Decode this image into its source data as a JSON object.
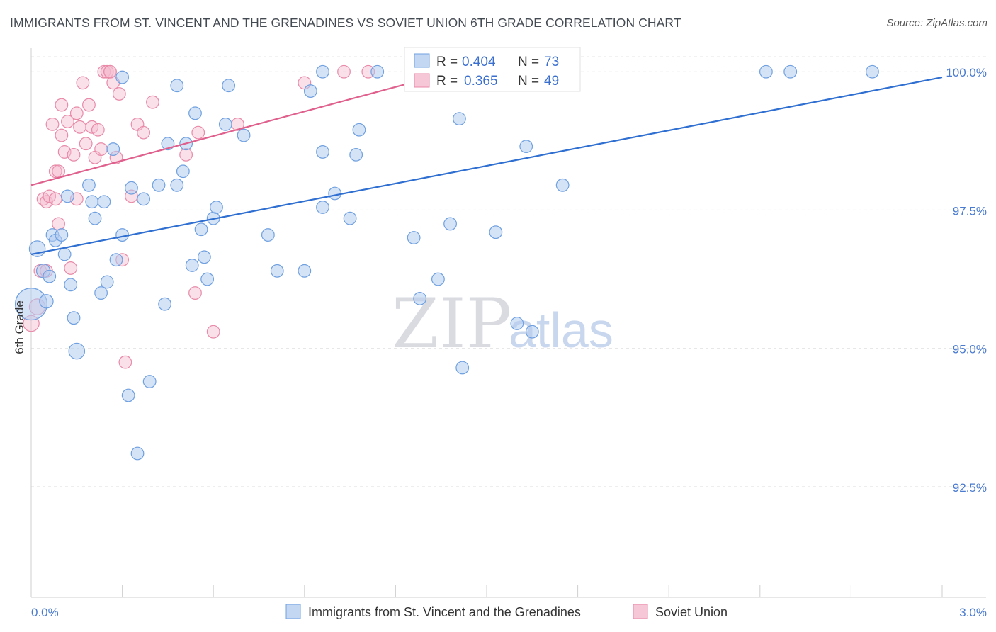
{
  "title": "IMMIGRANTS FROM ST. VINCENT AND THE GRENADINES VS SOVIET UNION 6TH GRADE CORRELATION CHART",
  "source": "Source: ZipAtlas.com",
  "watermark": {
    "zip": "ZIP",
    "atlas": "atlas"
  },
  "colors": {
    "blue": "#6fa0e0",
    "blue_fill": "#c3d7f3",
    "blue_line": "#2f6fd1",
    "pink": "#e88aa8",
    "pink_fill": "#f6c7d6",
    "pink_line": "#e0608d"
  },
  "legend": {
    "rows": [
      {
        "r_label": "R =",
        "r_value": "0.404",
        "n_label": "N =",
        "n_value": "73"
      },
      {
        "r_label": "R =",
        "r_value": "0.365",
        "n_label": "N =",
        "n_value": "49"
      }
    ]
  },
  "chart_data": {
    "type": "scatter",
    "title": "IMMIGRANTS FROM ST. VINCENT AND THE GRENADINES VS SOVIET UNION 6TH GRADE CORRELATION CHART",
    "xlabel": "",
    "ylabel": "6th Grade",
    "xlim": [
      0.0,
      3.0
    ],
    "ylim": [
      90.5,
      100.4
    ],
    "x_tick_labels": [
      "0.0%",
      "3.0%"
    ],
    "y_ticks": [
      92.5,
      95.0,
      97.5,
      100.0
    ],
    "y_tick_labels": [
      "92.5%",
      "95.0%",
      "97.5%",
      "100.0%"
    ],
    "grid": true,
    "legend_position": "top-center",
    "series": [
      {
        "name": "Immigrants from St. Vincent and the Grenadines",
        "color": "#6fa0e0",
        "trend": {
          "x": [
            0.0,
            3.0
          ],
          "y": [
            96.7,
            99.9
          ]
        },
        "points": [
          {
            "x": 0.0,
            "y": 95.8,
            "s": 28
          },
          {
            "x": 0.02,
            "y": 96.8,
            "s": 14
          },
          {
            "x": 0.04,
            "y": 96.4,
            "s": 12
          },
          {
            "x": 0.05,
            "y": 95.85,
            "s": 12
          },
          {
            "x": 0.06,
            "y": 96.3,
            "s": 11
          },
          {
            "x": 0.07,
            "y": 97.05,
            "s": 11
          },
          {
            "x": 0.08,
            "y": 96.95,
            "s": 11
          },
          {
            "x": 0.1,
            "y": 97.05,
            "s": 11
          },
          {
            "x": 0.11,
            "y": 96.7,
            "s": 11
          },
          {
            "x": 0.12,
            "y": 97.75,
            "s": 11
          },
          {
            "x": 0.13,
            "y": 96.15,
            "s": 11
          },
          {
            "x": 0.14,
            "y": 95.55,
            "s": 11
          },
          {
            "x": 0.15,
            "y": 94.95,
            "s": 14
          },
          {
            "x": 0.19,
            "y": 97.95,
            "s": 11
          },
          {
            "x": 0.2,
            "y": 97.65,
            "s": 11
          },
          {
            "x": 0.21,
            "y": 97.35,
            "s": 11
          },
          {
            "x": 0.23,
            "y": 96.0,
            "s": 11
          },
          {
            "x": 0.24,
            "y": 97.65,
            "s": 11
          },
          {
            "x": 0.25,
            "y": 96.2,
            "s": 11
          },
          {
            "x": 0.27,
            "y": 98.6,
            "s": 11
          },
          {
            "x": 0.28,
            "y": 96.6,
            "s": 11
          },
          {
            "x": 0.3,
            "y": 97.05,
            "s": 11
          },
          {
            "x": 0.3,
            "y": 99.9,
            "s": 11
          },
          {
            "x": 0.32,
            "y": 94.15,
            "s": 11
          },
          {
            "x": 0.33,
            "y": 97.9,
            "s": 11
          },
          {
            "x": 0.35,
            "y": 93.1,
            "s": 11
          },
          {
            "x": 0.37,
            "y": 97.7,
            "s": 11
          },
          {
            "x": 0.39,
            "y": 94.4,
            "s": 11
          },
          {
            "x": 0.42,
            "y": 97.95,
            "s": 11
          },
          {
            "x": 0.44,
            "y": 95.8,
            "s": 11
          },
          {
            "x": 0.45,
            "y": 98.7,
            "s": 11
          },
          {
            "x": 0.48,
            "y": 99.75,
            "s": 11
          },
          {
            "x": 0.48,
            "y": 97.95,
            "s": 11
          },
          {
            "x": 0.5,
            "y": 98.2,
            "s": 11
          },
          {
            "x": 0.51,
            "y": 98.7,
            "s": 11
          },
          {
            "x": 0.53,
            "y": 96.5,
            "s": 11
          },
          {
            "x": 0.54,
            "y": 99.25,
            "s": 11
          },
          {
            "x": 0.56,
            "y": 97.15,
            "s": 11
          },
          {
            "x": 0.57,
            "y": 96.65,
            "s": 11
          },
          {
            "x": 0.58,
            "y": 96.25,
            "s": 11
          },
          {
            "x": 0.6,
            "y": 97.35,
            "s": 11
          },
          {
            "x": 0.61,
            "y": 97.55,
            "s": 11
          },
          {
            "x": 0.64,
            "y": 99.05,
            "s": 11
          },
          {
            "x": 0.65,
            "y": 99.75,
            "s": 11
          },
          {
            "x": 0.7,
            "y": 98.85,
            "s": 11
          },
          {
            "x": 0.78,
            "y": 97.05,
            "s": 11
          },
          {
            "x": 0.81,
            "y": 96.4,
            "s": 11
          },
          {
            "x": 0.9,
            "y": 96.4,
            "s": 11
          },
          {
            "x": 0.92,
            "y": 99.65,
            "s": 11
          },
          {
            "x": 0.96,
            "y": 97.55,
            "s": 11
          },
          {
            "x": 0.96,
            "y": 100.0,
            "s": 11
          },
          {
            "x": 0.96,
            "y": 98.55,
            "s": 11
          },
          {
            "x": 1.0,
            "y": 97.8,
            "s": 11
          },
          {
            "x": 1.05,
            "y": 97.35,
            "s": 11
          },
          {
            "x": 1.07,
            "y": 98.5,
            "s": 11
          },
          {
            "x": 1.08,
            "y": 98.95,
            "s": 11
          },
          {
            "x": 1.14,
            "y": 100.0,
            "s": 11
          },
          {
            "x": 1.26,
            "y": 97.0,
            "s": 11
          },
          {
            "x": 1.28,
            "y": 95.9,
            "s": 11
          },
          {
            "x": 1.34,
            "y": 96.25,
            "s": 11
          },
          {
            "x": 1.38,
            "y": 97.25,
            "s": 11
          },
          {
            "x": 1.41,
            "y": 99.15,
            "s": 11
          },
          {
            "x": 1.42,
            "y": 94.65,
            "s": 11
          },
          {
            "x": 1.5,
            "y": 100.0,
            "s": 11
          },
          {
            "x": 1.53,
            "y": 97.1,
            "s": 11
          },
          {
            "x": 1.6,
            "y": 95.45,
            "s": 11
          },
          {
            "x": 1.63,
            "y": 98.65,
            "s": 11
          },
          {
            "x": 1.65,
            "y": 95.3,
            "s": 11
          },
          {
            "x": 1.7,
            "y": 100.0,
            "s": 11
          },
          {
            "x": 1.75,
            "y": 97.95,
            "s": 11
          },
          {
            "x": 2.42,
            "y": 100.0,
            "s": 11
          },
          {
            "x": 2.5,
            "y": 100.0,
            "s": 11
          },
          {
            "x": 2.77,
            "y": 100.0,
            "s": 11
          }
        ]
      },
      {
        "name": "Soviet Union",
        "color": "#e88aa8",
        "trend": {
          "x": [
            0.0,
            1.42
          ],
          "y": [
            97.95,
            100.05
          ]
        },
        "points": [
          {
            "x": 0.0,
            "y": 95.45,
            "s": 14
          },
          {
            "x": 0.02,
            "y": 95.75,
            "s": 14
          },
          {
            "x": 0.03,
            "y": 96.4,
            "s": 11
          },
          {
            "x": 0.04,
            "y": 97.7,
            "s": 11
          },
          {
            "x": 0.05,
            "y": 97.65,
            "s": 11
          },
          {
            "x": 0.06,
            "y": 97.75,
            "s": 11
          },
          {
            "x": 0.07,
            "y": 99.05,
            "s": 11
          },
          {
            "x": 0.08,
            "y": 98.2,
            "s": 11
          },
          {
            "x": 0.09,
            "y": 97.25,
            "s": 11
          },
          {
            "x": 0.09,
            "y": 98.2,
            "s": 11
          },
          {
            "x": 0.1,
            "y": 99.4,
            "s": 11
          },
          {
            "x": 0.1,
            "y": 98.85,
            "s": 11
          },
          {
            "x": 0.11,
            "y": 98.55,
            "s": 11
          },
          {
            "x": 0.12,
            "y": 99.1,
            "s": 11
          },
          {
            "x": 0.13,
            "y": 96.45,
            "s": 11
          },
          {
            "x": 0.14,
            "y": 98.5,
            "s": 11
          },
          {
            "x": 0.15,
            "y": 99.25,
            "s": 11
          },
          {
            "x": 0.16,
            "y": 99.0,
            "s": 11
          },
          {
            "x": 0.17,
            "y": 99.8,
            "s": 11
          },
          {
            "x": 0.18,
            "y": 98.7,
            "s": 11
          },
          {
            "x": 0.19,
            "y": 99.4,
            "s": 11
          },
          {
            "x": 0.2,
            "y": 99.0,
            "s": 11
          },
          {
            "x": 0.21,
            "y": 98.45,
            "s": 11
          },
          {
            "x": 0.22,
            "y": 98.95,
            "s": 11
          },
          {
            "x": 0.23,
            "y": 98.6,
            "s": 11
          },
          {
            "x": 0.24,
            "y": 100.0,
            "s": 11
          },
          {
            "x": 0.25,
            "y": 100.0,
            "s": 11
          },
          {
            "x": 0.26,
            "y": 100.0,
            "s": 11
          },
          {
            "x": 0.27,
            "y": 99.8,
            "s": 11
          },
          {
            "x": 0.28,
            "y": 98.45,
            "s": 11
          },
          {
            "x": 0.29,
            "y": 99.6,
            "s": 11
          },
          {
            "x": 0.3,
            "y": 96.6,
            "s": 11
          },
          {
            "x": 0.31,
            "y": 94.75,
            "s": 11
          },
          {
            "x": 0.33,
            "y": 97.75,
            "s": 11
          },
          {
            "x": 0.35,
            "y": 99.05,
            "s": 11
          },
          {
            "x": 0.37,
            "y": 98.9,
            "s": 11
          },
          {
            "x": 0.4,
            "y": 99.45,
            "s": 11
          },
          {
            "x": 0.51,
            "y": 98.5,
            "s": 11
          },
          {
            "x": 0.54,
            "y": 96.0,
            "s": 11
          },
          {
            "x": 0.55,
            "y": 98.9,
            "s": 11
          },
          {
            "x": 0.6,
            "y": 95.3,
            "s": 11
          },
          {
            "x": 0.68,
            "y": 99.05,
            "s": 11
          },
          {
            "x": 0.9,
            "y": 99.8,
            "s": 11
          },
          {
            "x": 1.03,
            "y": 100.0,
            "s": 11
          },
          {
            "x": 1.11,
            "y": 100.0,
            "s": 11
          },
          {
            "x": 0.15,
            "y": 97.7,
            "s": 11
          },
          {
            "x": 0.05,
            "y": 96.4,
            "s": 11
          },
          {
            "x": 0.26,
            "y": 100.0,
            "s": 11
          },
          {
            "x": 0.08,
            "y": 97.7,
            "s": 11
          }
        ]
      }
    ]
  }
}
